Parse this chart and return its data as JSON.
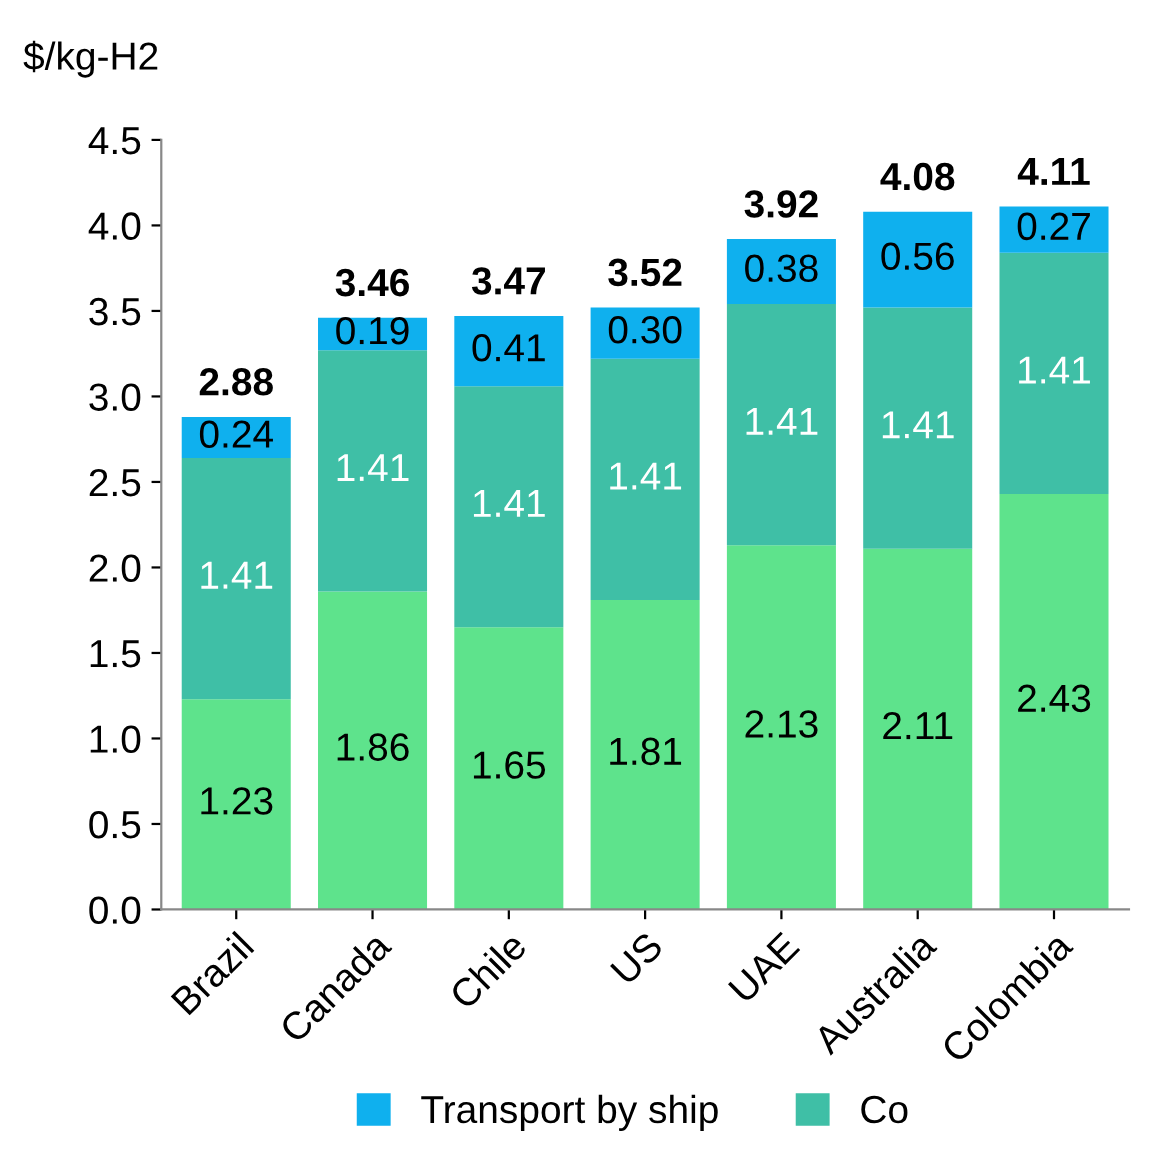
{
  "chart_data": {
    "type": "bar",
    "stacked": true,
    "ylabel": "$/kg-H2",
    "categories": [
      "Brazil",
      "Canada",
      "Chile",
      "US",
      "UAE",
      "Australia",
      "Colombia"
    ],
    "series": [
      {
        "color": "#5ee38c",
        "values": [
          1.23,
          1.86,
          1.65,
          1.81,
          2.13,
          2.11,
          2.43
        ],
        "value_labels": [
          "1.23",
          "1.86",
          "1.65",
          "1.81",
          "2.13",
          "2.11",
          "2.43"
        ]
      },
      {
        "name": "Co",
        "color": "#3fbfa6",
        "values": [
          1.41,
          1.41,
          1.41,
          1.41,
          1.41,
          1.41,
          1.41
        ],
        "value_labels": [
          "1.41",
          "1.41",
          "1.41",
          "1.41",
          "1.41",
          "1.41",
          "1.41"
        ]
      },
      {
        "name": "Transport by ship",
        "color": "#0fb0ee",
        "values": [
          0.24,
          0.19,
          0.41,
          0.3,
          0.38,
          0.56,
          0.27
        ],
        "value_labels": [
          "0.24",
          "0.19",
          "0.41",
          "0.30",
          "0.38",
          "0.56",
          "0.27"
        ]
      }
    ],
    "totals": [
      "2.88",
      "3.46",
      "3.47",
      "3.52",
      "3.92",
      "4.08",
      "4.11"
    ],
    "ylim": [
      0,
      4.5
    ],
    "yticks": [
      {
        "value": 0,
        "label": "0.0"
      },
      {
        "value": 0.5,
        "label": "0.5"
      },
      {
        "value": 1,
        "label": "1.0"
      },
      {
        "value": 1.5,
        "label": "1.5"
      },
      {
        "value": 2,
        "label": "2.0"
      },
      {
        "value": 2.5,
        "label": "2.5"
      },
      {
        "value": 3,
        "label": "3.0"
      },
      {
        "value": 3.5,
        "label": "3.5"
      },
      {
        "value": 4,
        "label": "4.0"
      },
      {
        "value": 4.5,
        "label": "4.5"
      }
    ],
    "grid": false,
    "legend": "bottom"
  }
}
